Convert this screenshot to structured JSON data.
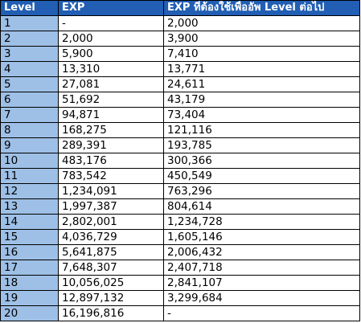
{
  "table": {
    "headers": [
      "Level",
      "EXP",
      "EXP ที่ต้องใช้เพื่ออัพ Level ต่อไป"
    ],
    "rows": [
      [
        "1",
        "-",
        "2,000"
      ],
      [
        "2",
        "2,000",
        "3,900"
      ],
      [
        "3",
        "5,900",
        "7,410"
      ],
      [
        "4",
        "13,310",
        "13,771"
      ],
      [
        "5",
        "27,081",
        "24,611"
      ],
      [
        "6",
        "51,692",
        "43,179"
      ],
      [
        "7",
        "94,871",
        "73,404"
      ],
      [
        "8",
        "168,275",
        "121,116"
      ],
      [
        "9",
        "289,391",
        "193,785"
      ],
      [
        "10",
        "483,176",
        "300,366"
      ],
      [
        "11",
        "783,542",
        "450,549"
      ],
      [
        "12",
        "1,234,091",
        "763,296"
      ],
      [
        "13",
        "1,997,387",
        "804,614"
      ],
      [
        "14",
        "2,802,001",
        "1,234,728"
      ],
      [
        "15",
        "4,036,729",
        "1,605,146"
      ],
      [
        "16",
        "5,641,875",
        "2,006,432"
      ],
      [
        "17",
        "7,648,307",
        "2,407,718"
      ],
      [
        "18",
        "10,056,025",
        "2,841,107"
      ],
      [
        "19",
        "12,897,132",
        "3,299,684"
      ],
      [
        "20",
        "16,196,816",
        "-"
      ]
    ]
  },
  "colors": {
    "header_bg": "#215eb4",
    "header_text": "#ffffff",
    "level_col_bg": "#9ec0e6",
    "cell_bg": "#ffffff",
    "border": "#000000"
  }
}
